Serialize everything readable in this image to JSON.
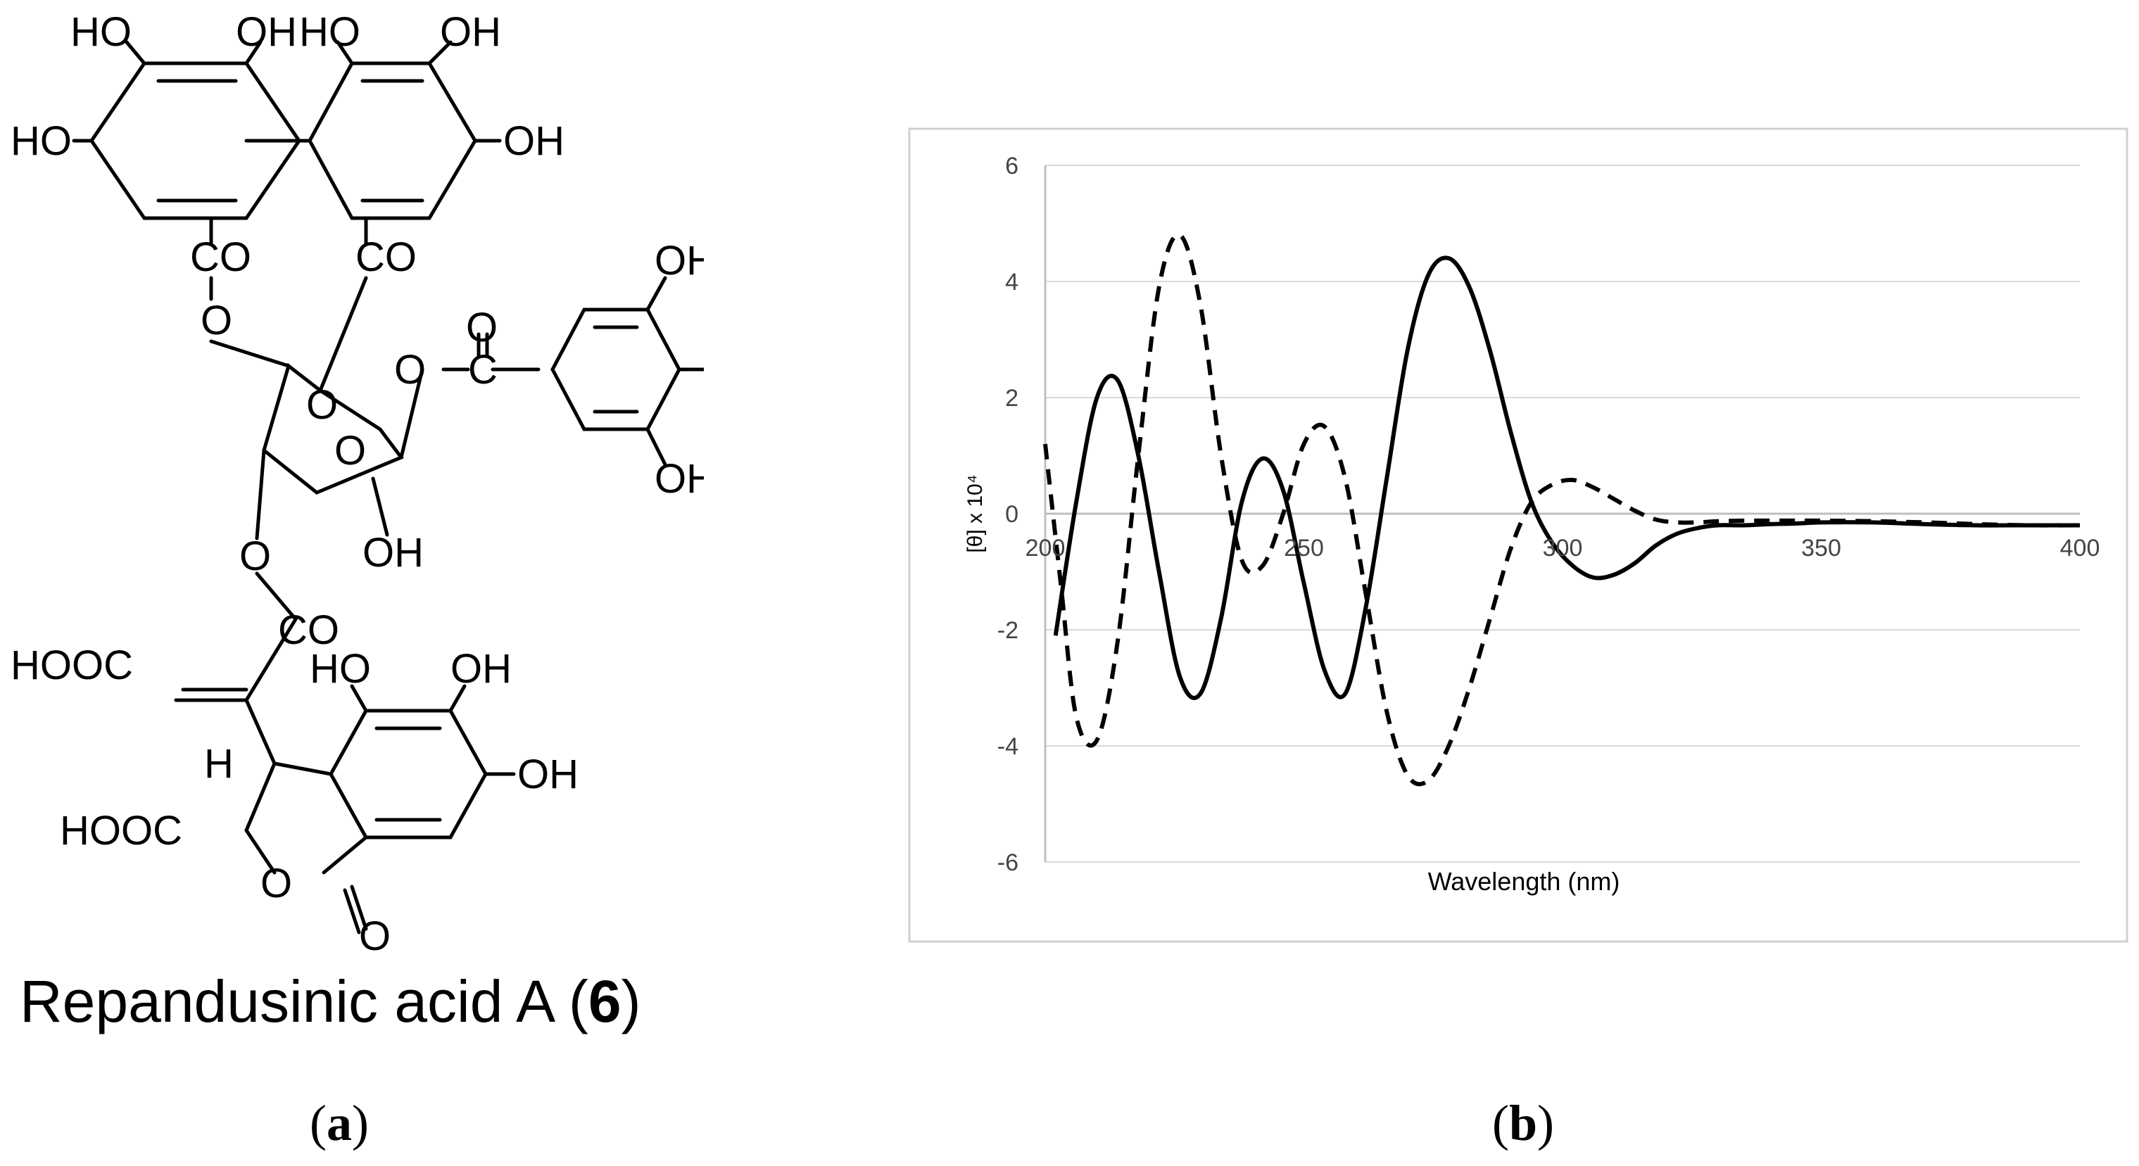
{
  "panel_a": {
    "compound_name": "Repandusinic acid A (",
    "compound_number": "6",
    "compound_name_close": ")",
    "caption_open": "(",
    "caption_letter": "a",
    "caption_close": ")",
    "labels": {
      "ho_1": "HO",
      "oh_1": "OH",
      "ho_2": "HO",
      "oh_2": "OH",
      "ho_3": "HO",
      "oh_3": "OH",
      "co_1": "CO",
      "co_2": "CO",
      "o_1": "O",
      "o_2": "O",
      "o_3": "O",
      "o_4": "O",
      "o_5": "O",
      "c_1": "C",
      "oh_4": "OH",
      "oh_5": "OH",
      "oh_6": "OH",
      "o_6": "O",
      "oh_7": "OH",
      "co_3": "CO",
      "hooc_1": "HOOC",
      "ho_4": "HO",
      "oh_8": "OH",
      "h_1": "H",
      "oh_9": "OH",
      "hooc_2": "HOOC",
      "o_7": "O",
      "o_8": "O"
    }
  },
  "panel_b": {
    "caption_open": "(",
    "caption_letter": "b",
    "caption_close": ")"
  },
  "chart_data": {
    "type": "line",
    "title": "",
    "xlabel": "Wavelength (nm)",
    "ylabel": "[θ] x 10⁴",
    "xlim": [
      200,
      400
    ],
    "ylim": [
      -6,
      6
    ],
    "x_ticks": [
      200,
      250,
      300,
      350,
      400
    ],
    "y_ticks": [
      6,
      4,
      2,
      0,
      -2,
      -4,
      -6
    ],
    "grid": "horizontal",
    "legend": "none",
    "series": [
      {
        "style": "solid",
        "color": "#000000",
        "x": [
          202,
          206,
          210,
          214,
          218,
          222,
          226,
          230,
          234,
          238,
          242,
          246,
          250,
          254,
          258,
          262,
          266,
          270,
          274,
          278,
          282,
          286,
          290,
          294,
          298,
          302,
          306,
          310,
          314,
          318,
          322,
          326,
          330,
          335,
          340,
          345,
          350,
          360,
          370,
          380,
          390,
          400
        ],
        "y": [
          -2.1,
          0.2,
          2.0,
          2.3,
          1.0,
          -1.0,
          -2.8,
          -3.1,
          -1.8,
          0.2,
          0.95,
          0.4,
          -1.2,
          -2.7,
          -3.1,
          -1.6,
          0.6,
          2.8,
          4.1,
          4.4,
          3.9,
          2.8,
          1.4,
          0.2,
          -0.5,
          -0.9,
          -1.1,
          -1.05,
          -0.85,
          -0.55,
          -0.35,
          -0.25,
          -0.2,
          -0.2,
          -0.18,
          -0.17,
          -0.15,
          -0.15,
          -0.18,
          -0.2,
          -0.2,
          -0.2
        ]
      },
      {
        "style": "dashed",
        "color": "#000000",
        "x": [
          200,
          203,
          206,
          210,
          214,
          218,
          222,
          226,
          230,
          234,
          238,
          242,
          246,
          250,
          254,
          258,
          262,
          266,
          270,
          274,
          278,
          282,
          286,
          290,
          294,
          298,
          302,
          306,
          310,
          314,
          318,
          322,
          326,
          330,
          335,
          340,
          345,
          350,
          360,
          370,
          380,
          390,
          400
        ],
        "y": [
          1.2,
          -1.2,
          -3.5,
          -3.9,
          -2.2,
          1.0,
          3.9,
          4.8,
          3.6,
          1.0,
          -0.8,
          -0.9,
          0.0,
          1.2,
          1.5,
          0.6,
          -1.4,
          -3.4,
          -4.5,
          -4.6,
          -4.0,
          -3.0,
          -1.8,
          -0.6,
          0.2,
          0.5,
          0.58,
          0.45,
          0.25,
          0.05,
          -0.1,
          -0.15,
          -0.15,
          -0.13,
          -0.12,
          -0.12,
          -0.12,
          -0.12,
          -0.13,
          -0.15,
          -0.18,
          -0.2,
          -0.2
        ]
      }
    ]
  }
}
